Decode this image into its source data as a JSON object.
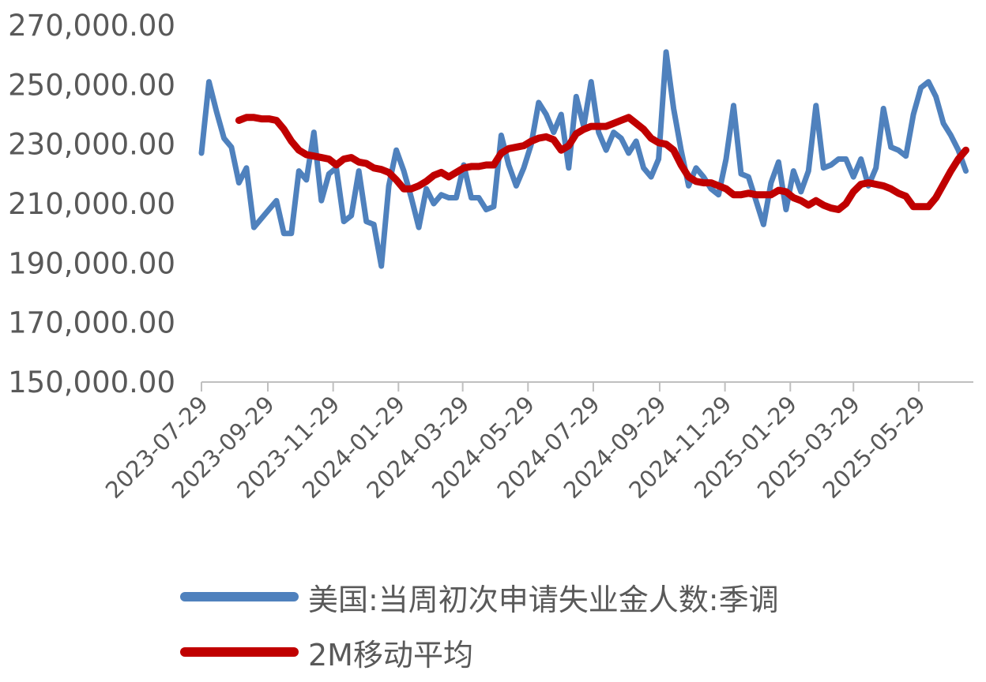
{
  "chart_data": {
    "type": "line",
    "title": "",
    "xlabel": "",
    "ylabel": "",
    "ylim": [
      150000,
      270000
    ],
    "y_ticks": [
      "270,000.00",
      "250,000.00",
      "230,000.00",
      "210,000.00",
      "190,000.00",
      "170,000.00",
      "150,000.00"
    ],
    "x_tick_labels": [
      "2023-07-29",
      "2023-09-29",
      "2023-11-29",
      "2024-01-29",
      "2024-03-29",
      "2024-05-29",
      "2024-07-29",
      "2024-09-29",
      "2024-11-29",
      "2025-01-29",
      "2025-03-29",
      "2025-05-29"
    ],
    "x_range": [
      "2023-07-29",
      "2025-07-19"
    ],
    "grid": false,
    "legend_position": "bottom",
    "series": [
      {
        "name": "美国:当周初次申请失业金人数:季调",
        "color": "#4F81BD",
        "points": [
          [
            "2023-07-29",
            227000
          ],
          [
            "2023-08-05",
            251000
          ],
          [
            "2023-08-12",
            241000
          ],
          [
            "2023-08-19",
            232000
          ],
          [
            "2023-08-26",
            229000
          ],
          [
            "2023-09-02",
            217000
          ],
          [
            "2023-09-09",
            222000
          ],
          [
            "2023-09-16",
            202000
          ],
          [
            "2023-09-23",
            205000
          ],
          [
            "2023-09-30",
            208000
          ],
          [
            "2023-10-07",
            211000
          ],
          [
            "2023-10-14",
            200000
          ],
          [
            "2023-10-21",
            200000
          ],
          [
            "2023-10-28",
            221000
          ],
          [
            "2023-11-04",
            218000
          ],
          [
            "2023-11-11",
            234000
          ],
          [
            "2023-11-18",
            211000
          ],
          [
            "2023-11-25",
            220000
          ],
          [
            "2023-12-02",
            222000
          ],
          [
            "2023-12-09",
            204000
          ],
          [
            "2023-12-16",
            206000
          ],
          [
            "2023-12-23",
            221000
          ],
          [
            "2023-12-30",
            204000
          ],
          [
            "2024-01-06",
            203000
          ],
          [
            "2024-01-13",
            189000
          ],
          [
            "2024-01-20",
            216000
          ],
          [
            "2024-01-27",
            228000
          ],
          [
            "2024-02-03",
            221000
          ],
          [
            "2024-02-10",
            212000
          ],
          [
            "2024-02-17",
            202000
          ],
          [
            "2024-02-24",
            215000
          ],
          [
            "2024-03-02",
            210000
          ],
          [
            "2024-03-09",
            213000
          ],
          [
            "2024-03-16",
            212000
          ],
          [
            "2024-03-23",
            212000
          ],
          [
            "2024-03-30",
            223000
          ],
          [
            "2024-04-06",
            212000
          ],
          [
            "2024-04-13",
            212000
          ],
          [
            "2024-04-20",
            208000
          ],
          [
            "2024-04-27",
            209000
          ],
          [
            "2024-05-04",
            233000
          ],
          [
            "2024-05-11",
            223000
          ],
          [
            "2024-05-18",
            216000
          ],
          [
            "2024-05-25",
            222000
          ],
          [
            "2024-06-01",
            230000
          ],
          [
            "2024-06-08",
            244000
          ],
          [
            "2024-06-15",
            240000
          ],
          [
            "2024-06-22",
            234000
          ],
          [
            "2024-06-29",
            240000
          ],
          [
            "2024-07-06",
            222000
          ],
          [
            "2024-07-13",
            246000
          ],
          [
            "2024-07-20",
            236000
          ],
          [
            "2024-07-27",
            251000
          ],
          [
            "2024-08-03",
            234000
          ],
          [
            "2024-08-10",
            228000
          ],
          [
            "2024-08-17",
            234000
          ],
          [
            "2024-08-24",
            232000
          ],
          [
            "2024-08-31",
            227000
          ],
          [
            "2024-09-07",
            231000
          ],
          [
            "2024-09-14",
            222000
          ],
          [
            "2024-09-21",
            219000
          ],
          [
            "2024-09-28",
            225000
          ],
          [
            "2024-10-05",
            261000
          ],
          [
            "2024-10-12",
            242000
          ],
          [
            "2024-10-19",
            228000
          ],
          [
            "2024-10-26",
            216000
          ],
          [
            "2024-11-02",
            222000
          ],
          [
            "2024-11-09",
            219000
          ],
          [
            "2024-11-16",
            215000
          ],
          [
            "2024-11-23",
            213000
          ],
          [
            "2024-11-30",
            225000
          ],
          [
            "2024-12-07",
            243000
          ],
          [
            "2024-12-14",
            220000
          ],
          [
            "2024-12-21",
            219000
          ],
          [
            "2024-12-28",
            211000
          ],
          [
            "2025-01-04",
            203000
          ],
          [
            "2025-01-11",
            217000
          ],
          [
            "2025-01-18",
            224000
          ],
          [
            "2025-01-25",
            208000
          ],
          [
            "2025-02-01",
            221000
          ],
          [
            "2025-02-08",
            214000
          ],
          [
            "2025-02-15",
            221000
          ],
          [
            "2025-02-22",
            243000
          ],
          [
            "2025-03-01",
            222000
          ],
          [
            "2025-03-08",
            223000
          ],
          [
            "2025-03-15",
            225000
          ],
          [
            "2025-03-22",
            225000
          ],
          [
            "2025-03-29",
            219000
          ],
          [
            "2025-04-05",
            225000
          ],
          [
            "2025-04-12",
            216000
          ],
          [
            "2025-04-19",
            222000
          ],
          [
            "2025-04-26",
            242000
          ],
          [
            "2025-05-03",
            229000
          ],
          [
            "2025-05-10",
            228000
          ],
          [
            "2025-05-17",
            226000
          ],
          [
            "2025-05-24",
            240000
          ],
          [
            "2025-05-31",
            249000
          ],
          [
            "2025-06-07",
            251000
          ],
          [
            "2025-06-14",
            246000
          ],
          [
            "2025-06-21",
            237000
          ],
          [
            "2025-06-28",
            233000
          ],
          [
            "2025-07-05",
            228000
          ],
          [
            "2025-07-12",
            221000
          ]
        ]
      },
      {
        "name": "2M移动平均",
        "color": "#C00000",
        "points": [
          [
            "2023-09-02",
            238000
          ],
          [
            "2023-09-09",
            239000
          ],
          [
            "2023-09-16",
            239000
          ],
          [
            "2023-09-23",
            238500
          ],
          [
            "2023-09-30",
            238500
          ],
          [
            "2023-10-07",
            238000
          ],
          [
            "2023-10-14",
            235000
          ],
          [
            "2023-10-21",
            231000
          ],
          [
            "2023-10-28",
            228000
          ],
          [
            "2023-11-04",
            226500
          ],
          [
            "2023-11-11",
            226000
          ],
          [
            "2023-11-18",
            225500
          ],
          [
            "2023-11-25",
            225000
          ],
          [
            "2023-12-02",
            223000
          ],
          [
            "2023-12-09",
            225000
          ],
          [
            "2023-12-16",
            225500
          ],
          [
            "2023-12-23",
            224000
          ],
          [
            "2023-12-30",
            223500
          ],
          [
            "2024-01-06",
            222000
          ],
          [
            "2024-01-13",
            221500
          ],
          [
            "2024-01-20",
            220500
          ],
          [
            "2024-01-27",
            218000
          ],
          [
            "2024-02-03",
            215000
          ],
          [
            "2024-02-10",
            215000
          ],
          [
            "2024-02-17",
            216000
          ],
          [
            "2024-02-24",
            217500
          ],
          [
            "2024-03-02",
            219500
          ],
          [
            "2024-03-09",
            220500
          ],
          [
            "2024-03-16",
            219000
          ],
          [
            "2024-03-23",
            220500
          ],
          [
            "2024-03-30",
            222000
          ],
          [
            "2024-04-06",
            222500
          ],
          [
            "2024-04-13",
            222500
          ],
          [
            "2024-04-20",
            223000
          ],
          [
            "2024-04-27",
            223000
          ],
          [
            "2024-05-04",
            227000
          ],
          [
            "2024-05-11",
            228500
          ],
          [
            "2024-05-18",
            229000
          ],
          [
            "2024-05-25",
            229500
          ],
          [
            "2024-06-01",
            231000
          ],
          [
            "2024-06-08",
            232000
          ],
          [
            "2024-06-15",
            232500
          ],
          [
            "2024-06-22",
            231500
          ],
          [
            "2024-06-29",
            228000
          ],
          [
            "2024-07-06",
            229500
          ],
          [
            "2024-07-13",
            233500
          ],
          [
            "2024-07-20",
            235000
          ],
          [
            "2024-07-27",
            236000
          ],
          [
            "2024-08-03",
            236000
          ],
          [
            "2024-08-10",
            236000
          ],
          [
            "2024-08-17",
            237000
          ],
          [
            "2024-08-24",
            238000
          ],
          [
            "2024-08-31",
            239000
          ],
          [
            "2024-09-07",
            237000
          ],
          [
            "2024-09-14",
            235000
          ],
          [
            "2024-09-21",
            232000
          ],
          [
            "2024-09-28",
            230500
          ],
          [
            "2024-10-05",
            230000
          ],
          [
            "2024-10-12",
            228000
          ],
          [
            "2024-10-19",
            223000
          ],
          [
            "2024-10-26",
            219000
          ],
          [
            "2024-11-02",
            217500
          ],
          [
            "2024-11-09",
            217000
          ],
          [
            "2024-11-16",
            217000
          ],
          [
            "2024-11-23",
            216000
          ],
          [
            "2024-11-30",
            215000
          ],
          [
            "2024-12-07",
            213000
          ],
          [
            "2024-12-14",
            213000
          ],
          [
            "2024-12-21",
            213500
          ],
          [
            "2024-12-28",
            213000
          ],
          [
            "2025-01-04",
            213000
          ],
          [
            "2025-01-11",
            213000
          ],
          [
            "2025-01-18",
            214500
          ],
          [
            "2025-01-25",
            214000
          ],
          [
            "2025-02-01",
            212000
          ],
          [
            "2025-02-08",
            211000
          ],
          [
            "2025-02-15",
            209500
          ],
          [
            "2025-02-22",
            211000
          ],
          [
            "2025-03-01",
            209500
          ],
          [
            "2025-03-08",
            208500
          ],
          [
            "2025-03-15",
            208000
          ],
          [
            "2025-03-22",
            210000
          ],
          [
            "2025-03-29",
            214000
          ],
          [
            "2025-04-05",
            216500
          ],
          [
            "2025-04-12",
            217000
          ],
          [
            "2025-04-19",
            216500
          ],
          [
            "2025-04-26",
            216000
          ],
          [
            "2025-05-03",
            215000
          ],
          [
            "2025-05-10",
            213500
          ],
          [
            "2025-05-17",
            212500
          ],
          [
            "2025-05-24",
            209000
          ],
          [
            "2025-05-31",
            209000
          ],
          [
            "2025-06-07",
            209000
          ],
          [
            "2025-06-14",
            212000
          ],
          [
            "2025-06-21",
            216500
          ],
          [
            "2025-06-28",
            221000
          ],
          [
            "2025-07-05",
            225000
          ],
          [
            "2025-07-12",
            228000
          ]
        ]
      }
    ]
  }
}
